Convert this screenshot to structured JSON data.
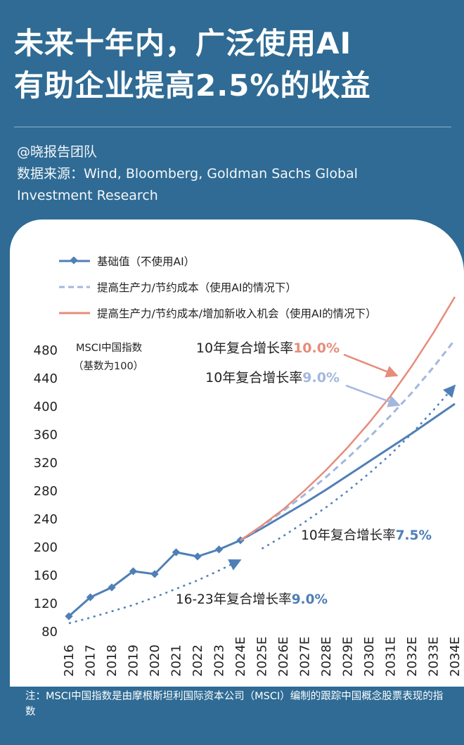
{
  "title": {
    "line1": "未来十年内，广泛使用AI",
    "line2": "有助企业提高2.5%的收益"
  },
  "meta": {
    "author": "@晓报告团队",
    "source_line1": "数据来源：Wind, Bloomberg, Goldman Sachs Global",
    "source_line2": "Investment Research"
  },
  "colors": {
    "background": "#2f6b94",
    "base": "#4f7fb6",
    "productivity": "#a3b7de",
    "full": "#e68c7a",
    "annotation_dark": "#222222"
  },
  "chart_data": {
    "type": "line",
    "ylabel_line1": "MSCI中国指数",
    "ylabel_line2": "（基数为100）",
    "x": [
      "2016",
      "2017",
      "2018",
      "2019",
      "2020",
      "2021",
      "2022",
      "2023",
      "2024E",
      "2025E",
      "2026E",
      "2027E",
      "2028E",
      "2029E",
      "2030E",
      "2031E",
      "2032E",
      "2033E",
      "2034E"
    ],
    "yticks": [
      80,
      120,
      160,
      200,
      240,
      280,
      320,
      360,
      400,
      440,
      480
    ],
    "ylim": [
      80,
      490
    ],
    "grid": false,
    "legend_position": "top-left",
    "series": [
      {
        "name": "基础值（不使用AI）",
        "style": "solid-diamond",
        "values": [
          101,
          128,
          142,
          165,
          161,
          192,
          186,
          196,
          209,
          226,
          244,
          262,
          281,
          301,
          321,
          341,
          361,
          382,
          403
        ]
      },
      {
        "name": "提高生产力/节约成本（使用AI的情况下）",
        "style": "dashed",
        "values": [
          null,
          null,
          null,
          null,
          null,
          null,
          null,
          null,
          209,
          229,
          251,
          274,
          299,
          326,
          355,
          386,
          419,
          455,
          494
        ]
      },
      {
        "name": "提高生产力/节约成本/增加新收入机会（使用AI的情况下）",
        "style": "solid",
        "values": [
          null,
          null,
          null,
          null,
          null,
          null,
          null,
          null,
          209,
          230,
          253,
          280,
          309,
          341,
          376,
          414,
          457,
          504,
          555
        ]
      },
      {
        "name": "",
        "style": "dotted-trend",
        "values": [
          91,
          99,
          108,
          117,
          128,
          140,
          152,
          166,
          181,
          197,
          215,
          235,
          256,
          279,
          304,
          331,
          361,
          394,
          429
        ]
      }
    ],
    "annotations": {
      "full_prefix": "10年复合增长率",
      "full_value": "10.0%",
      "prod_prefix": "10年复合增长率",
      "prod_value": "9.0%",
      "base_prefix": "10年复合增长率",
      "base_value": "7.5%",
      "hist_prefix": "16-23年复合增长率",
      "hist_value": "9.0%"
    }
  },
  "footnote": "注：MSCI中国指数是由摩根斯坦利国际资本公司（MSCI）编制的跟踪中国概念股票表现的指数"
}
